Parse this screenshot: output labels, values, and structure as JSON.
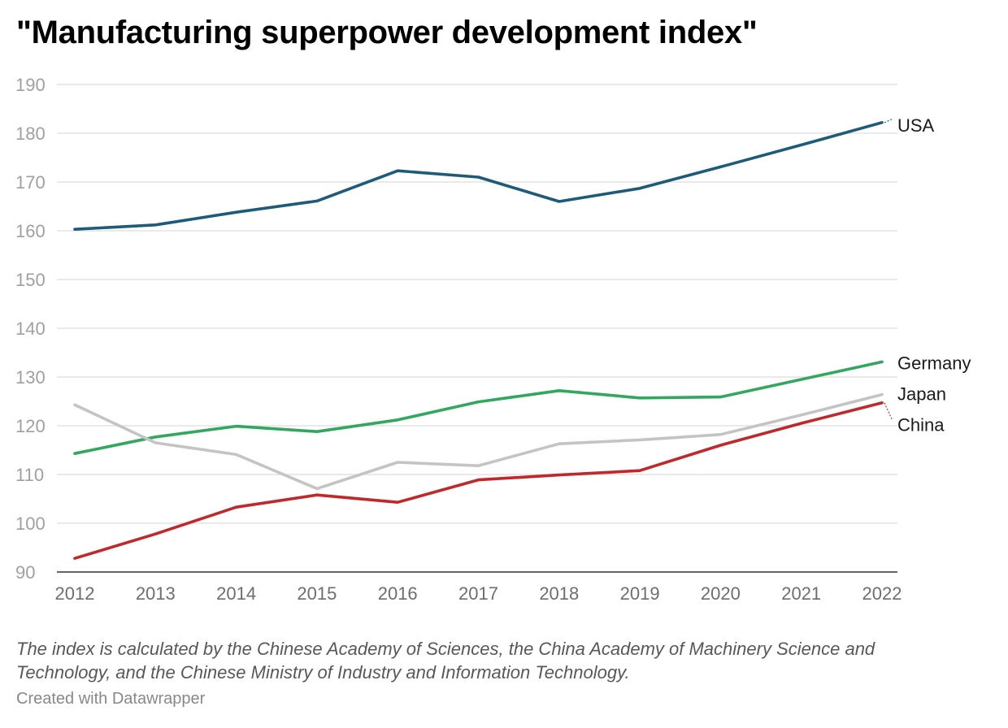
{
  "title": "\"Manufacturing superpower development index\"",
  "notes": "The index is calculated by the Chinese Academy of Sciences, the China Academy of Machinery Science and Technology, and the Chinese Ministry of Industry and Information Technology.",
  "credit": "Created with Datawrapper",
  "chart_data": {
    "type": "line",
    "title": "\"Manufacturing superpower development index\"",
    "x": [
      2012,
      2013,
      2014,
      2015,
      2016,
      2017,
      2018,
      2019,
      2020,
      2021,
      2022
    ],
    "ylim": [
      90,
      190
    ],
    "yticks": [
      90,
      100,
      110,
      120,
      130,
      140,
      150,
      160,
      170,
      180,
      190
    ],
    "grid": true,
    "legend": "inline-right",
    "series": [
      {
        "name": "USA",
        "color": "#1d5b79",
        "values": [
          160.3,
          161.2,
          163.8,
          166.1,
          172.3,
          171.0,
          166.0,
          168.7,
          173.1,
          177.6,
          182.2
        ]
      },
      {
        "name": "Germany",
        "color": "#32a85f",
        "values": [
          114.3,
          117.7,
          119.9,
          118.8,
          121.2,
          124.9,
          127.2,
          125.7,
          125.9,
          129.5,
          133.1
        ]
      },
      {
        "name": "Japan",
        "color": "#c4c4c4",
        "values": [
          124.3,
          116.5,
          114.1,
          107.1,
          112.5,
          111.8,
          116.3,
          117.1,
          118.2,
          122.2,
          126.4
        ]
      },
      {
        "name": "China",
        "color": "#c0282b",
        "values": [
          92.8,
          97.8,
          103.3,
          105.8,
          104.3,
          108.9,
          109.9,
          110.8,
          116.0,
          120.5,
          124.7
        ]
      }
    ]
  }
}
